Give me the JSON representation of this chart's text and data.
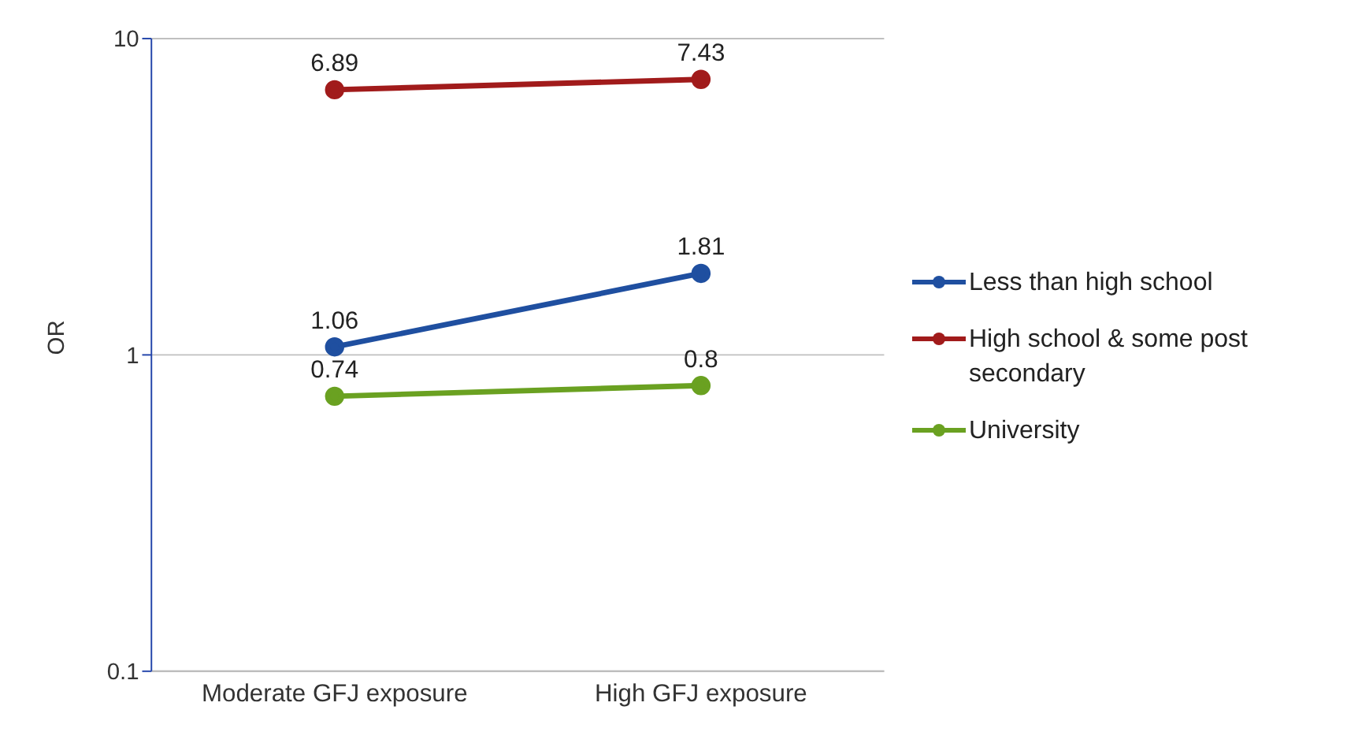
{
  "chart_data": {
    "type": "line",
    "ylabel": "OR",
    "categories": [
      "Moderate GFJ exposure",
      "High GFJ exposure"
    ],
    "series": [
      {
        "name": "Less than high school",
        "color": "#1f4fa0",
        "values": [
          1.06,
          1.81
        ]
      },
      {
        "name": "High school & some post secondary",
        "color": "#a11b1b",
        "values": [
          6.89,
          7.43
        ]
      },
      {
        "name": "University",
        "color": "#6aa121",
        "values": [
          0.74,
          0.8
        ]
      }
    ],
    "ylim": [
      0.1,
      10
    ],
    "yticks": [
      0.1,
      1,
      10
    ],
    "log": true,
    "grid": "y",
    "legend": "right",
    "marker": "circle",
    "line_style": "solid",
    "data_labels": true
  }
}
